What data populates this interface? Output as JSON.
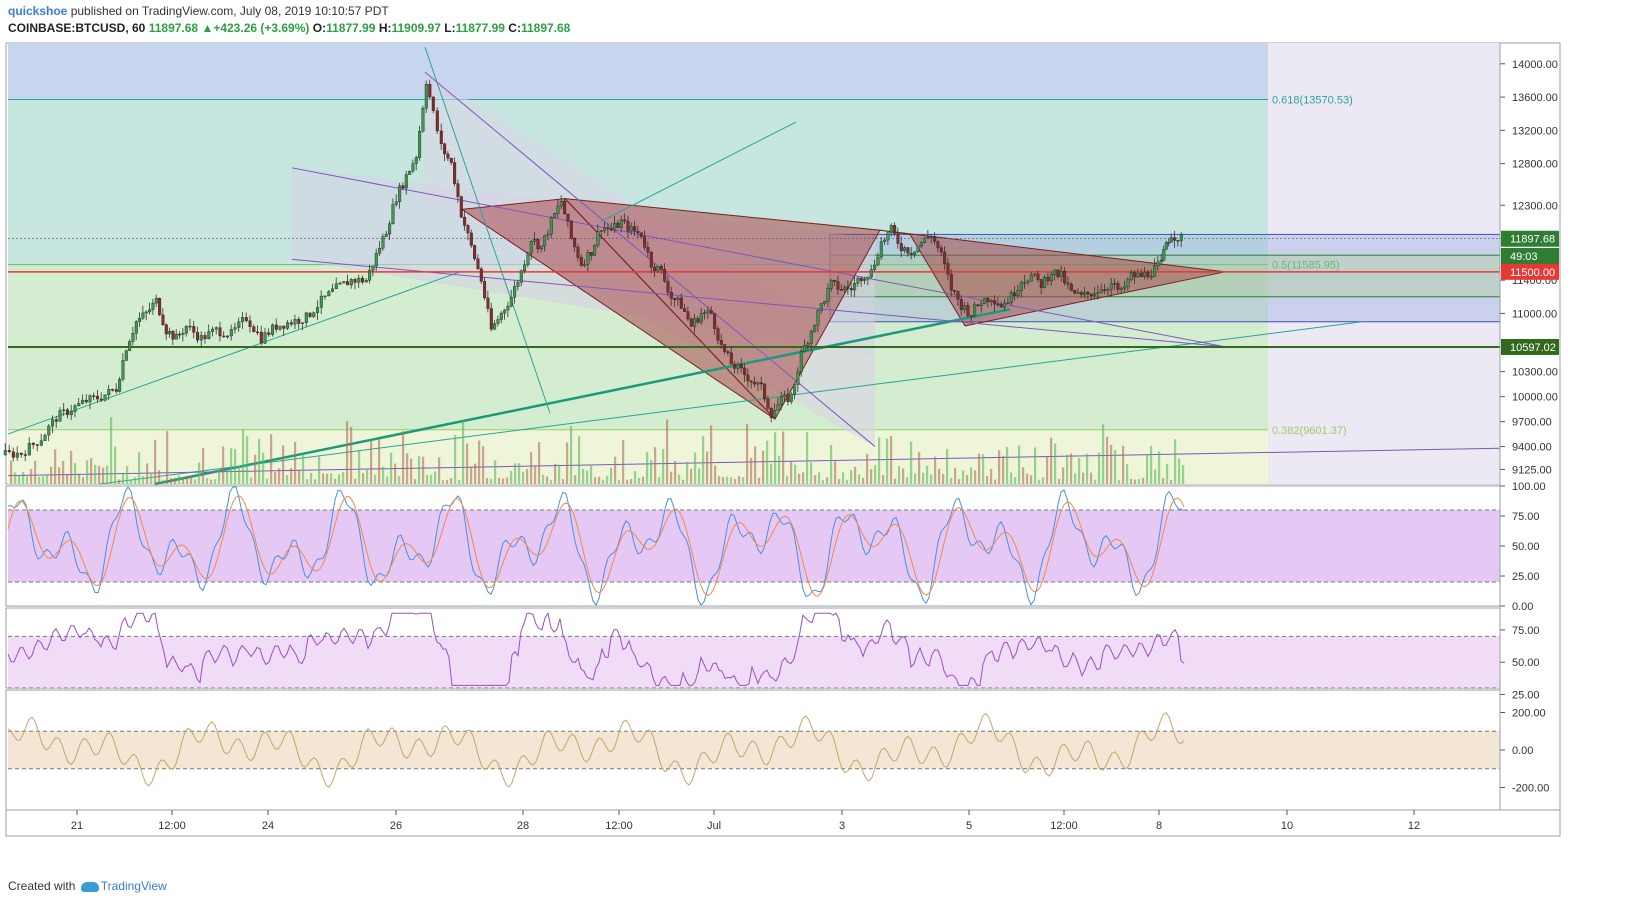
{
  "header": {
    "user": "quickshoe",
    "published_text": "published on TradingView.com, July 08, 2019 10:10:57 PDT",
    "symbol": "COINBASE:BTCUSD, 60",
    "last": "11897.68",
    "change": "+423.26 (+3.69%)",
    "o_label": "O:",
    "o": "11877.99",
    "h_label": "H:",
    "h": "11909.97",
    "l_label": "L:",
    "l": "11877.99",
    "c_label": "C:",
    "c": "11897.68"
  },
  "footer": {
    "created": "Created with",
    "brand": "TradingView"
  },
  "colors": {
    "up": "#26a69a",
    "down": "#8b2a2a",
    "fib_blue": "#c5d6ee",
    "fib_teal": "#c8e6e0",
    "fib_green": "#d4ecd0",
    "fib_yellow": "#eef5d8",
    "future": "#ece8f4",
    "triangle": "#a84a4a",
    "stoch_band": "#e6c8f5",
    "rsi_band": "#f1dcf8",
    "cci_band": "#f3e6d4"
  },
  "chart_data": [
    {
      "type": "candlestick",
      "title": "",
      "ylim": [
        8950,
        14250
      ],
      "y_ticks": [
        "14000.00",
        "13600.00",
        "13200.00",
        "12800.00",
        "12300.00",
        "11900.00",
        "11400.00",
        "11000.00",
        "10300.00",
        "10000.00",
        "9700.00",
        "9400.00",
        "9125.00"
      ],
      "x_ticks": [
        "21",
        "12:00",
        "24",
        "26",
        "28",
        "12:00",
        "Jul",
        "3",
        "5",
        "12:00",
        "8",
        "10",
        "12"
      ],
      "fib_levels": [
        {
          "label": "0.618(13570.53)",
          "value": 13570.53
        },
        {
          "label": "0.5(11585.95)",
          "value": 11585.95
        },
        {
          "label": "0.382(9601.37)",
          "value": 9601.37
        }
      ],
      "price_labels": [
        {
          "text": "11897.68",
          "value": 11897.68,
          "color": "#2e7d32"
        },
        {
          "text": "49:03",
          "value": 11690,
          "color": "#2e7d32"
        },
        {
          "text": "11500.00",
          "value": 11500.0,
          "color": "#e53935"
        },
        {
          "text": "10597.02",
          "value": 10597.02,
          "color": "#33691e"
        }
      ],
      "close_path": [
        [
          0,
          9300
        ],
        [
          20,
          9320
        ],
        [
          40,
          9500
        ],
        [
          55,
          9750
        ],
        [
          70,
          9850
        ],
        [
          85,
          9950
        ],
        [
          100,
          10000
        ],
        [
          115,
          10100
        ],
        [
          125,
          10600
        ],
        [
          135,
          10900
        ],
        [
          145,
          11000
        ],
        [
          155,
          11150
        ],
        [
          165,
          10800
        ],
        [
          175,
          10700
        ],
        [
          185,
          10850
        ],
        [
          200,
          10700
        ],
        [
          215,
          10800
        ],
        [
          230,
          10750
        ],
        [
          245,
          10950
        ],
        [
          260,
          10700
        ],
        [
          275,
          10850
        ],
        [
          290,
          10900
        ],
        [
          305,
          10950
        ],
        [
          320,
          11150
        ],
        [
          335,
          11300
        ],
        [
          350,
          11400
        ],
        [
          365,
          11400
        ],
        [
          375,
          11700
        ],
        [
          385,
          12000
        ],
        [
          395,
          12400
        ],
        [
          405,
          12650
        ],
        [
          415,
          12900
        ],
        [
          425,
          13800
        ],
        [
          432,
          13400
        ],
        [
          440,
          13000
        ],
        [
          450,
          12800
        ],
        [
          460,
          12200
        ],
        [
          470,
          11800
        ],
        [
          480,
          11400
        ],
        [
          490,
          10800
        ],
        [
          500,
          11000
        ],
        [
          510,
          11200
        ],
        [
          520,
          11500
        ],
        [
          530,
          11900
        ],
        [
          540,
          11800
        ],
        [
          550,
          12100
        ],
        [
          560,
          12350
        ],
        [
          570,
          11900
        ],
        [
          580,
          11600
        ],
        [
          590,
          11750
        ],
        [
          600,
          12050
        ],
        [
          610,
          12000
        ],
        [
          620,
          12100
        ],
        [
          630,
          12000
        ],
        [
          640,
          11950
        ],
        [
          650,
          11600
        ],
        [
          660,
          11500
        ],
        [
          670,
          11200
        ],
        [
          680,
          11100
        ],
        [
          690,
          10850
        ],
        [
          700,
          11000
        ],
        [
          710,
          11000
        ],
        [
          720,
          10600
        ],
        [
          730,
          10400
        ],
        [
          740,
          10300
        ],
        [
          750,
          10200
        ],
        [
          760,
          10100
        ],
        [
          770,
          9800
        ],
        [
          780,
          9950
        ],
        [
          790,
          10000
        ],
        [
          800,
          10500
        ],
        [
          810,
          10800
        ],
        [
          820,
          11100
        ],
        [
          830,
          11350
        ],
        [
          840,
          11300
        ],
        [
          850,
          11300
        ],
        [
          860,
          11450
        ],
        [
          870,
          11500
        ],
        [
          880,
          11850
        ],
        [
          890,
          12000
        ],
        [
          900,
          11800
        ],
        [
          910,
          11750
        ],
        [
          920,
          11850
        ],
        [
          930,
          11950
        ],
        [
          940,
          11700
        ],
        [
          950,
          11300
        ],
        [
          960,
          11100
        ],
        [
          970,
          11000
        ],
        [
          980,
          11150
        ],
        [
          990,
          11200
        ],
        [
          1000,
          11100
        ],
        [
          1010,
          11200
        ],
        [
          1020,
          11400
        ],
        [
          1030,
          11450
        ],
        [
          1040,
          11350
        ],
        [
          1050,
          11500
        ],
        [
          1060,
          11450
        ],
        [
          1070,
          11250
        ],
        [
          1080,
          11200
        ],
        [
          1090,
          11250
        ],
        [
          1100,
          11300
        ],
        [
          1110,
          11350
        ],
        [
          1120,
          11250
        ],
        [
          1130,
          11450
        ],
        [
          1140,
          11450
        ],
        [
          1150,
          11500
        ],
        [
          1160,
          11600
        ],
        [
          1165,
          11850
        ],
        [
          1170,
          11950
        ],
        [
          1180,
          11900
        ]
      ]
    },
    {
      "type": "line",
      "title": "",
      "ylim": [
        0,
        100
      ],
      "y_ticks": [
        "100.00",
        "75.00",
        "50.00",
        "25.00",
        "0.00"
      ],
      "band": [
        20,
        80
      ]
    },
    {
      "type": "line",
      "title": "",
      "ylim": [
        30,
        92
      ],
      "y_ticks": [
        "75.00",
        "50.00",
        "25.00"
      ],
      "band": [
        30,
        70
      ]
    },
    {
      "type": "line",
      "title": "",
      "ylim": [
        -320,
        320
      ],
      "y_ticks": [
        "200.00",
        "0.00",
        "-200.00"
      ],
      "band": [
        -100,
        100
      ]
    }
  ]
}
